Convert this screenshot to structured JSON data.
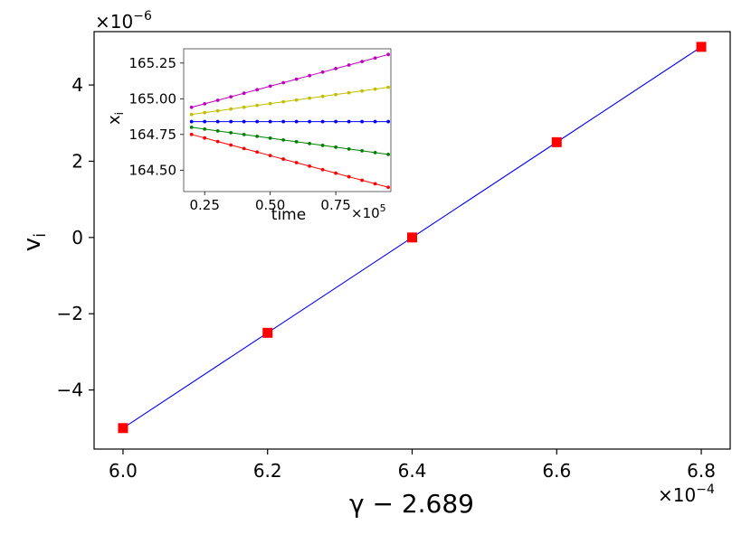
{
  "chart_data": [
    {
      "type": "line",
      "xlabel": "γ − 2.689",
      "ylabel": "v",
      "ylabel_sub": "i",
      "x_multiplier": {
        "base": "×10",
        "exp": "−4"
      },
      "y_multiplier": {
        "base": "×10",
        "exp": "−6"
      },
      "xlim": [
        5.96,
        6.84
      ],
      "ylim": [
        -5.55,
        5.4
      ],
      "xticks": [
        6.0,
        6.2,
        6.4,
        6.6,
        6.8
      ],
      "xtick_labels": [
        "6.0",
        "6.2",
        "6.4",
        "6.6",
        "6.8"
      ],
      "yticks": [
        -4,
        -2,
        0,
        2,
        4
      ],
      "ytick_labels": [
        "−4",
        "−2",
        "0",
        "2",
        "4"
      ],
      "grid": false,
      "series": [
        {
          "x": [
            6.0,
            6.2,
            6.4,
            6.6,
            6.8
          ],
          "y": [
            -5.0,
            -2.5,
            0.0,
            2.5,
            5.0
          ],
          "line_color": "#0000ff",
          "marker": "square",
          "marker_color": "#ff0000"
        }
      ]
    },
    {
      "type": "line",
      "role": "inset",
      "xlabel": "time",
      "ylabel": "x",
      "ylabel_sub": "i",
      "x_multiplier": {
        "base": "×10",
        "exp": "5"
      },
      "xlim": [
        0.17,
        0.96
      ],
      "ylim": [
        164.35,
        165.35
      ],
      "xticks": [
        0.25,
        0.5,
        0.75
      ],
      "xtick_labels": [
        "0.25",
        "0.50",
        "0.75"
      ],
      "yticks": [
        164.5,
        164.75,
        165.0,
        165.25
      ],
      "ytick_labels": [
        "164.50",
        "164.75",
        "165.00",
        "165.25"
      ],
      "grid": false,
      "series": [
        {
          "color": "#bf00bf",
          "x_start": 0.2,
          "x_end": 0.95,
          "n_points": 16,
          "y_start": 164.94,
          "y_end": 165.31
        },
        {
          "color": "#bfbf00",
          "x_start": 0.2,
          "x_end": 0.95,
          "n_points": 16,
          "y_start": 164.89,
          "y_end": 165.08
        },
        {
          "color": "#0000ff",
          "x_start": 0.2,
          "x_end": 0.95,
          "n_points": 16,
          "y_start": 164.84,
          "y_end": 164.84
        },
        {
          "color": "#008000",
          "x_start": 0.2,
          "x_end": 0.95,
          "n_points": 16,
          "y_start": 164.8,
          "y_end": 164.61
        },
        {
          "color": "#ff0000",
          "x_start": 0.2,
          "x_end": 0.95,
          "n_points": 16,
          "y_start": 164.75,
          "y_end": 164.38
        }
      ]
    }
  ]
}
